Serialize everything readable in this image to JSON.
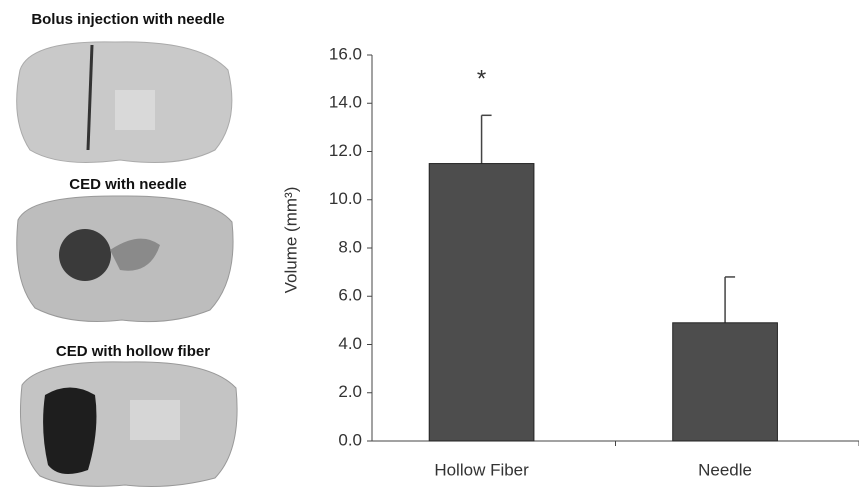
{
  "image_labels": [
    "Bolus injection with needle",
    "CED with needle",
    "CED with hollow fiber"
  ],
  "chart_data": {
    "type": "bar",
    "ylabel": "Volume (mm³)",
    "categories": [
      "Hollow Fiber",
      "Needle"
    ],
    "values": [
      11.5,
      4.9
    ],
    "errors": [
      2.0,
      1.9
    ],
    "color": "#4d4d4d",
    "annotation": "*",
    "ylim": [
      0,
      16
    ],
    "yticks": [
      {
        "value": 0,
        "label": "0.0"
      },
      {
        "value": 2,
        "label": "2.0"
      },
      {
        "value": 4,
        "label": "4.0"
      },
      {
        "value": 6,
        "label": "6.0"
      },
      {
        "value": 8,
        "label": "8.0"
      },
      {
        "value": 10,
        "label": "10.0"
      },
      {
        "value": 12,
        "label": "12.0"
      },
      {
        "value": 14,
        "label": "14.0"
      },
      {
        "value": 16,
        "label": "16.0"
      }
    ],
    "grid": false
  }
}
